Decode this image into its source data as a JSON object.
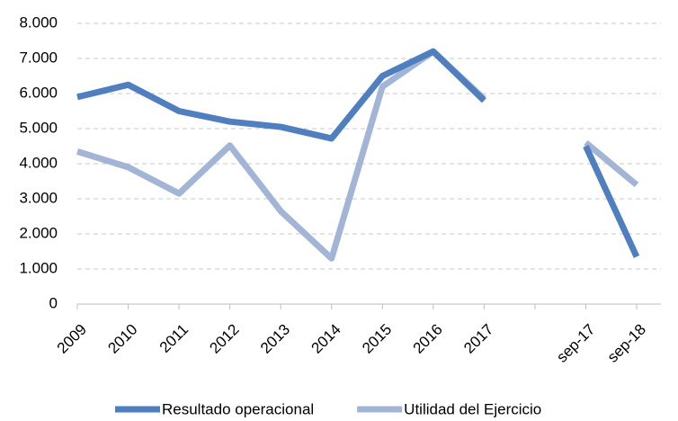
{
  "chart_data": {
    "type": "line",
    "categories": [
      "2009",
      "2010",
      "2011",
      "2012",
      "2013",
      "2014",
      "2015",
      "2016",
      "2017",
      null,
      "sep-17",
      "sep-18"
    ],
    "series": [
      {
        "name": "Resultado operacional",
        "color": "#4f7fbf",
        "values": [
          5900,
          6250,
          5500,
          5200,
          5050,
          4720,
          6500,
          7200,
          5800,
          null,
          4500,
          1350
        ]
      },
      {
        "name": "Utilidad del Ejercicio",
        "color": "#a2b5d6",
        "values": [
          4350,
          3900,
          3150,
          4520,
          2650,
          1300,
          6200,
          7200,
          5850,
          null,
          4600,
          3400
        ]
      }
    ],
    "ylim": [
      0,
      8000
    ],
    "yticks": [
      0,
      {
        "value": 1000,
        "label": "1.000"
      },
      {
        "value": 2000,
        "label": "2.000"
      },
      {
        "value": 3000,
        "label": "3.000"
      },
      {
        "value": 4000,
        "label": "4.000"
      },
      {
        "value": 5000,
        "label": "5.000"
      },
      {
        "value": 6000,
        "label": "6.000"
      },
      {
        "value": 7000,
        "label": "7.000"
      },
      {
        "value": 8000,
        "label": "8.000"
      }
    ],
    "grid": true
  }
}
